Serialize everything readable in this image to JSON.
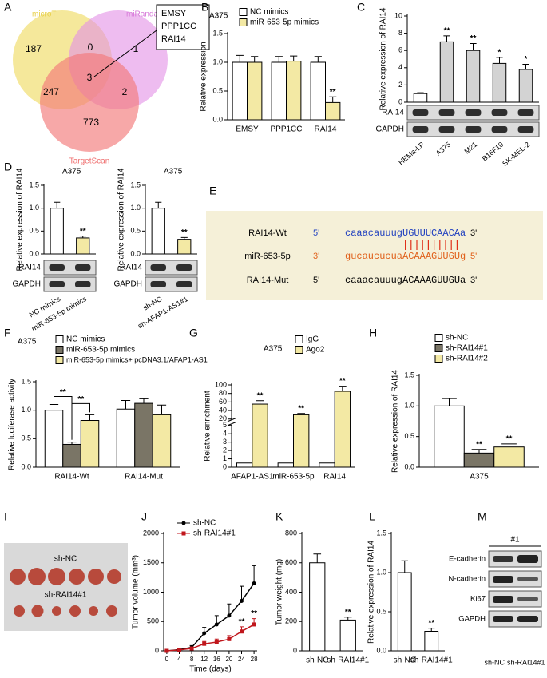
{
  "venn": {
    "panel": "A",
    "sets": [
      "microT",
      "miRanda",
      "TargetScan"
    ],
    "counts": [
      187,
      0,
      1,
      3,
      247,
      2,
      773
    ],
    "genes": [
      "EMSY",
      "PPP1CC",
      "RAI14"
    ]
  },
  "sequence_panel": {
    "panel": "E",
    "rows": [
      {
        "name": "RAI14-Wt",
        "left": "5'",
        "sequence": "caaacauuugUGUUUCAACAa",
        "right": "3'"
      },
      {
        "name": "miR-653-5p",
        "left": "3'",
        "sequence": "gucaucucuaACAAAGUUGUg",
        "right": "5'"
      },
      {
        "name": "RAI14-Mut",
        "left": "5'",
        "sequence": "caaacauuugACAAAGUUGUa",
        "right": "3'"
      }
    ]
  },
  "tumor_photo": {
    "panel": "I",
    "groups": [
      "sh-NC",
      "sh-RAI14#1"
    ]
  },
  "western_blot": {
    "panel": "M",
    "group": "#1",
    "proteins": [
      "E-cadherin",
      "N-cadherin",
      "Ki67",
      "GAPDH"
    ],
    "lanes": [
      "sh-NC",
      "sh-RAI14#1"
    ]
  },
  "chart_data": [
    {
      "panel": "B",
      "type": "bar",
      "subtitle": "A375",
      "y_label": "Relative expression",
      "categories": [
        "EMSY",
        "PPP1CC",
        "RAI14"
      ],
      "series": [
        {
          "name": "NC mimics",
          "color": "#ffffff",
          "values": [
            1,
            1,
            1
          ],
          "errors": [
            0.12,
            0.1,
            0.1
          ]
        },
        {
          "name": "miR-653-5p mimics",
          "color": "#f3e9a4",
          "values": [
            1,
            1.02,
            0.3
          ],
          "errors": [
            0.1,
            0.09,
            0.1
          ],
          "annotations": [
            null,
            null,
            "**"
          ]
        }
      ],
      "ylim": [
        0,
        1.5
      ],
      "yticks": [
        {
          "value": 0,
          "label": "0.0"
        },
        0.5,
        {
          "value": 1,
          "label": "1.0"
        },
        1.5
      ]
    },
    {
      "panel": "C",
      "type": "bar",
      "y_label": "Relative expression of RAI14",
      "categories": [
        "HEMa-LP",
        "A375",
        "M21",
        "B16F10",
        "SK-MEL-2"
      ],
      "values": [
        1,
        7,
        6,
        4.5,
        3.8
      ],
      "errors": [
        0.1,
        0.7,
        0.8,
        0.7,
        0.6
      ],
      "annotations": [
        null,
        "**",
        "**",
        "*",
        "*"
      ],
      "colors": [
        "#ffffff",
        "#d3d3d3",
        "#d3d3d3",
        "#d3d3d3",
        "#d3d3d3"
      ],
      "ylim": [
        0,
        10
      ],
      "yticks": [
        0,
        2,
        4,
        6,
        8,
        10
      ],
      "blots": [
        "RAI14",
        "GAPDH"
      ]
    },
    {
      "panel": "D",
      "type": "bar",
      "subtitle": "A375",
      "y_label": "Relative expression of RAI14",
      "categories": [
        "NC mimics",
        "miR-653-5p mimics"
      ],
      "values": [
        1,
        0.35
      ],
      "errors": [
        0.13,
        0.04
      ],
      "annotations": [
        null,
        "**"
      ],
      "colors": [
        "#ffffff",
        "#f3e9a4"
      ],
      "ylim": [
        0,
        1.5
      ],
      "yticks": [
        {
          "value": 0,
          "label": "0.0"
        },
        0.5,
        {
          "value": 1,
          "label": "1.0"
        },
        1.5
      ],
      "blots": [
        "RAI14",
        "GAPDH"
      ]
    },
    {
      "type": "bar",
      "subtitle": "A375",
      "y_label": "Relative expression of RAI14",
      "categories": [
        "sh-NC",
        "sh-AFAP1-AS1#1"
      ],
      "values": [
        1,
        0.32
      ],
      "errors": [
        0.13,
        0.04
      ],
      "annotations": [
        null,
        "**"
      ],
      "colors": [
        "#ffffff",
        "#f3e9a4"
      ],
      "ylim": [
        0,
        1.5
      ],
      "yticks": [
        {
          "value": 0,
          "label": "0.0"
        },
        0.5,
        {
          "value": 1,
          "label": "1.0"
        },
        1.5
      ],
      "blots": [
        "RAI14",
        "GAPDH"
      ]
    },
    {
      "panel": "F",
      "type": "bar",
      "subtitle": "A375",
      "y_label": "Relative luciferase activity",
      "categories": [
        "RAI14-Wt",
        "RAI14-Mut"
      ],
      "series": [
        {
          "name": "NC mimics",
          "color": "#ffffff",
          "values": [
            1,
            1.02
          ],
          "errors": [
            0.1,
            0.15
          ]
        },
        {
          "name": "miR-653-5p mimics",
          "color": "#7a7566",
          "values": [
            0.4,
            1.12
          ],
          "errors": [
            0.04,
            0.08
          ]
        },
        {
          "name": "miR-653-5p mimics+ pcDNA3.1/AFAP1-AS1",
          "color": "#f3e9a4",
          "values": [
            0.82,
            0.92
          ],
          "errors": [
            0.1,
            0.17
          ]
        }
      ],
      "comparisons": [
        {
          "text": "**",
          "between": [
            0,
            1
          ]
        },
        {
          "text": "**",
          "between": [
            1,
            2
          ]
        }
      ],
      "ylim": [
        0,
        1.5
      ],
      "yticks": [
        {
          "value": 0,
          "label": "0.0"
        },
        0.5,
        {
          "value": 1,
          "label": "1.0"
        },
        1.5
      ]
    },
    {
      "panel": "G",
      "type": "bar",
      "subtitle": "A375",
      "y_label": "Relative enrichment",
      "categories": [
        "AFAP1-AS1",
        "miR-653-5p",
        "RAI14"
      ],
      "series": [
        {
          "name": "IgG",
          "color": "#ffffff",
          "values": [
            0.5,
            0.5,
            0.5
          ]
        },
        {
          "name": "Ago2",
          "color": "#f3e9a4",
          "values": [
            55,
            30,
            85
          ],
          "errors": [
            8,
            3,
            12
          ],
          "annotations": [
            "**",
            "**",
            "**"
          ]
        }
      ],
      "ylim": [
        0,
        100
      ],
      "axis_break": [
        5,
        20
      ],
      "yticks": [
        0,
        1,
        2,
        3,
        4,
        5,
        20,
        40,
        60,
        80,
        100
      ]
    },
    {
      "panel": "H",
      "type": "bar",
      "y_label": "Relative expression of RAI14",
      "categories": [
        "A375"
      ],
      "series": [
        {
          "name": "sh-NC",
          "color": "#ffffff",
          "values": [
            1
          ],
          "errors": [
            0.12
          ]
        },
        {
          "name": "sh-RAI14#1",
          "color": "#7a7566",
          "values": [
            0.23
          ],
          "errors": [
            0.06
          ],
          "annotations": [
            "**"
          ]
        },
        {
          "name": "sh-RAI14#2",
          "color": "#f3e9a4",
          "values": [
            0.33
          ],
          "errors": [
            0.05
          ],
          "annotations": [
            "**"
          ]
        }
      ],
      "ylim": [
        0,
        1.5
      ],
      "yticks": [
        {
          "value": 0,
          "label": "0.0"
        },
        0.5,
        {
          "value": 1,
          "label": "1.0"
        },
        1.5
      ]
    },
    {
      "panel": "J",
      "type": "line",
      "x_label": "Time (days)",
      "y_label": "Tumor volume (mm³)",
      "x": [
        0,
        4,
        8,
        12,
        16,
        20,
        24,
        28
      ],
      "xlim": [
        -1,
        29
      ],
      "xticks": [
        0,
        4,
        8,
        12,
        16,
        20,
        24,
        28
      ],
      "series": [
        {
          "name": "sh-NC",
          "color": "#000000",
          "values": [
            0,
            20,
            60,
            300,
            450,
            600,
            850,
            1150
          ],
          "errors": [
            0,
            10,
            30,
            100,
            150,
            200,
            250,
            300
          ]
        },
        {
          "name": "sh-RAI14#1",
          "color": "#c0161c",
          "values": [
            0,
            15,
            40,
            120,
            150,
            200,
            330,
            450
          ],
          "errors": [
            0,
            5,
            15,
            40,
            50,
            60,
            80,
            100
          ],
          "annotations": [
            null,
            null,
            null,
            null,
            null,
            null,
            "**",
            "**"
          ]
        }
      ],
      "ylim": [
        0,
        2000
      ],
      "yticks": [
        0,
        500,
        1000,
        1500,
        2000
      ]
    },
    {
      "panel": "K",
      "type": "bar",
      "y_label": "Tumor weight (mg)",
      "categories": [
        "sh-NC",
        "sh-RAI14#1"
      ],
      "values": [
        600,
        210
      ],
      "errors": [
        60,
        20
      ],
      "annotations": [
        null,
        "**"
      ],
      "colors": [
        "#ffffff",
        "#ffffff"
      ],
      "ylim": [
        0,
        800
      ],
      "yticks": [
        0,
        200,
        400,
        600,
        800
      ]
    },
    {
      "panel": "L",
      "type": "bar",
      "y_label": "Relative expression of RAI14",
      "categories": [
        "sh-NC",
        "sh-RAI14#1"
      ],
      "values": [
        1,
        0.25
      ],
      "errors": [
        0.15,
        0.04
      ],
      "annotations": [
        null,
        "**"
      ],
      "colors": [
        "#ffffff",
        "#ffffff"
      ],
      "ylim": [
        0,
        1.5
      ],
      "yticks": [
        {
          "value": 0,
          "label": "0.0"
        },
        0.5,
        {
          "value": 1,
          "label": "1.0"
        },
        1.5
      ]
    }
  ]
}
